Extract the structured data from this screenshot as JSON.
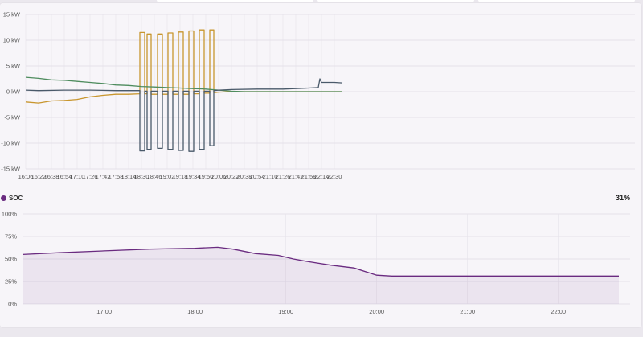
{
  "chart_data": [
    {
      "type": "line",
      "title": "",
      "ylabel": "",
      "unit": "kW",
      "ylim": [
        -15,
        15
      ],
      "yticks": [
        "15 kW",
        "10 kW",
        "5 kW",
        "0 kW",
        "-5 kW",
        "-10 kW",
        "-15 kW"
      ],
      "xticks": [
        "16:06",
        "16:22",
        "16:38",
        "16:54",
        "17:10",
        "17:26",
        "17:42",
        "17:58",
        "18:14",
        "18:30",
        "18:46",
        "19:02",
        "19:18",
        "19:34",
        "19:50",
        "20:06",
        "20:22",
        "20:38",
        "20:54",
        "21:10",
        "21:26",
        "21:42",
        "21:58",
        "22:14",
        "22:30"
      ],
      "grid": true,
      "legend": "none",
      "series": [
        {
          "color": "#c8962e",
          "points": [
            [
              "16:06",
              -2.0
            ],
            [
              "16:22",
              -2.2
            ],
            [
              "16:38",
              -1.8
            ],
            [
              "16:54",
              -1.7
            ],
            [
              "17:10",
              -1.5
            ],
            [
              "17:26",
              -1.0
            ],
            [
              "17:42",
              -0.7
            ],
            [
              "17:58",
              -0.5
            ],
            [
              "18:14",
              -0.5
            ],
            [
              "18:28",
              -0.4
            ],
            [
              "18:28",
              11.5
            ],
            [
              "18:34",
              11.5
            ],
            [
              "18:34",
              -0.4
            ],
            [
              "18:37",
              -0.4
            ],
            [
              "18:37",
              11.2
            ],
            [
              "18:42",
              11.2
            ],
            [
              "18:42",
              -0.5
            ],
            [
              "18:50",
              -0.5
            ],
            [
              "18:50",
              11.2
            ],
            [
              "18:56",
              11.2
            ],
            [
              "18:56",
              -0.5
            ],
            [
              "19:03",
              -0.5
            ],
            [
              "19:03",
              11.4
            ],
            [
              "19:09",
              11.4
            ],
            [
              "19:09",
              -0.5
            ],
            [
              "19:16",
              -0.5
            ],
            [
              "19:16",
              11.6
            ],
            [
              "19:22",
              11.6
            ],
            [
              "19:22",
              -0.5
            ],
            [
              "19:29",
              -0.5
            ],
            [
              "19:29",
              11.8
            ],
            [
              "19:35",
              11.8
            ],
            [
              "19:35",
              -0.4
            ],
            [
              "19:42",
              -0.4
            ],
            [
              "19:42",
              12.0
            ],
            [
              "19:48",
              12.0
            ],
            [
              "19:48",
              -0.3
            ],
            [
              "19:55",
              -0.3
            ],
            [
              "19:55",
              12.0
            ],
            [
              "20:00",
              12.0
            ],
            [
              "20:00",
              -0.2
            ],
            [
              "20:06",
              -0.1
            ],
            [
              "20:22",
              0.0
            ],
            [
              "21:00",
              0.0
            ],
            [
              "22:00",
              0.0
            ],
            [
              "22:40",
              0.0
            ]
          ]
        },
        {
          "color": "#4e8c5e",
          "points": [
            [
              "16:06",
              2.8
            ],
            [
              "16:22",
              2.6
            ],
            [
              "16:38",
              2.3
            ],
            [
              "16:54",
              2.2
            ],
            [
              "17:10",
              2.0
            ],
            [
              "17:26",
              1.8
            ],
            [
              "17:42",
              1.6
            ],
            [
              "17:58",
              1.3
            ],
            [
              "18:14",
              1.2
            ],
            [
              "18:30",
              1.0
            ],
            [
              "18:46",
              0.9
            ],
            [
              "19:02",
              0.8
            ],
            [
              "19:18",
              0.7
            ],
            [
              "19:34",
              0.6
            ],
            [
              "19:50",
              0.5
            ],
            [
              "20:06",
              0.3
            ],
            [
              "20:22",
              0.1
            ],
            [
              "20:38",
              0.0
            ],
            [
              "22:40",
              0.0
            ]
          ]
        },
        {
          "color": "#4a5a6a",
          "points": [
            [
              "16:06",
              0.3
            ],
            [
              "16:22",
              0.2
            ],
            [
              "16:54",
              0.3
            ],
            [
              "17:26",
              0.3
            ],
            [
              "17:58",
              0.2
            ],
            [
              "18:14",
              0.2
            ],
            [
              "18:28",
              0.2
            ],
            [
              "18:28",
              -11.5
            ],
            [
              "18:34",
              -11.5
            ],
            [
              "18:34",
              0.1
            ],
            [
              "18:37",
              0.1
            ],
            [
              "18:37",
              -11.2
            ],
            [
              "18:42",
              -11.2
            ],
            [
              "18:42",
              0.1
            ],
            [
              "18:50",
              0.1
            ],
            [
              "18:50",
              -11.0
            ],
            [
              "18:56",
              -11.0
            ],
            [
              "18:56",
              0.1
            ],
            [
              "19:03",
              0.1
            ],
            [
              "19:03",
              -11.2
            ],
            [
              "19:09",
              -11.2
            ],
            [
              "19:09",
              0.1
            ],
            [
              "19:16",
              0.1
            ],
            [
              "19:16",
              -11.4
            ],
            [
              "19:22",
              -11.4
            ],
            [
              "19:22",
              0.1
            ],
            [
              "19:29",
              0.1
            ],
            [
              "19:29",
              -11.6
            ],
            [
              "19:35",
              -11.6
            ],
            [
              "19:35",
              0.1
            ],
            [
              "19:42",
              0.1
            ],
            [
              "19:42",
              -11.2
            ],
            [
              "19:48",
              -11.2
            ],
            [
              "19:48",
              0.1
            ],
            [
              "19:55",
              0.1
            ],
            [
              "19:55",
              -10.5
            ],
            [
              "20:00",
              -10.5
            ],
            [
              "20:00",
              0.2
            ],
            [
              "20:06",
              0.3
            ],
            [
              "20:22",
              0.4
            ],
            [
              "20:54",
              0.5
            ],
            [
              "21:26",
              0.5
            ],
            [
              "21:58",
              0.7
            ],
            [
              "22:10",
              0.8
            ],
            [
              "22:12",
              2.5
            ],
            [
              "22:14",
              1.8
            ],
            [
              "22:30",
              1.8
            ],
            [
              "22:40",
              1.7
            ]
          ]
        }
      ]
    },
    {
      "type": "area",
      "title": "",
      "series_name": "SOC",
      "current_value": "31%",
      "ylim": [
        0,
        100
      ],
      "yticks": [
        "100%",
        "75%",
        "50%",
        "25%",
        "0%"
      ],
      "xticks": [
        "17:00",
        "18:00",
        "19:00",
        "20:00",
        "21:00",
        "22:00"
      ],
      "grid": true,
      "color": "#6a2b80",
      "points": [
        [
          "16:06",
          55
        ],
        [
          "16:30",
          57
        ],
        [
          "17:00",
          59
        ],
        [
          "17:30",
          61
        ],
        [
          "18:00",
          62
        ],
        [
          "18:15",
          63
        ],
        [
          "18:25",
          61
        ],
        [
          "18:40",
          56
        ],
        [
          "18:55",
          54
        ],
        [
          "19:05",
          50
        ],
        [
          "19:15",
          47
        ],
        [
          "19:30",
          43
        ],
        [
          "19:45",
          40
        ],
        [
          "20:00",
          32
        ],
        [
          "20:10",
          31
        ],
        [
          "21:00",
          31
        ],
        [
          "22:00",
          31
        ],
        [
          "22:40",
          31
        ]
      ]
    }
  ]
}
